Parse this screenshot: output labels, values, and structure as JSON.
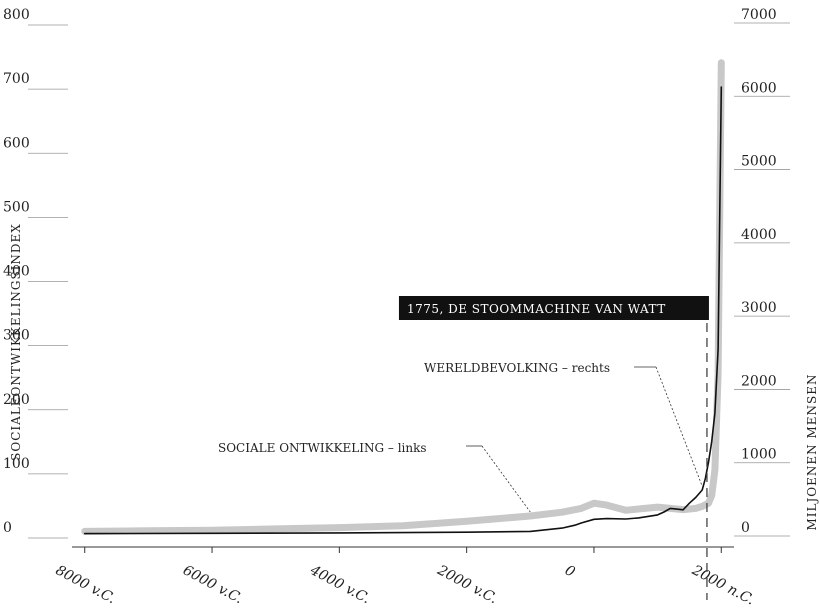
{
  "chart_data": {
    "type": "line",
    "ylabel_left": "SOCIALEONTWIKKELINGSINDEX",
    "ylabel_right": "MILJOENEN MENSEN",
    "ylim_left": [
      0,
      800
    ],
    "ylim_right": [
      0,
      7000
    ],
    "xlim": [
      -8200,
      2200
    ],
    "left_ticks": [
      "800",
      "700",
      "600",
      "500",
      "400",
      "300",
      "200",
      "100",
      "0"
    ],
    "right_ticks": [
      "7000",
      "6000",
      "5000",
      "4000",
      "3000",
      "2000",
      "1000",
      "0"
    ],
    "x_ticks": [
      {
        "label": "8000 v.C.",
        "value": -8000
      },
      {
        "label": "6000 v.C.",
        "value": -6000
      },
      {
        "label": "4000 v.C.",
        "value": -4000
      },
      {
        "label": "2000 v.C.",
        "value": -2000
      },
      {
        "label": "0",
        "value": 0
      },
      {
        "label": "2000 n.C.",
        "value": 2000
      }
    ],
    "series": [
      {
        "name": "SOCIALE ONTWIKKELING – links",
        "axis": "left",
        "color": "#c8c8c8",
        "x": [
          -8000,
          -7000,
          -6000,
          -5000,
          -4000,
          -3000,
          -2000,
          -1500,
          -1000,
          -500,
          -200,
          0,
          200,
          500,
          800,
          1000,
          1200,
          1400,
          1600,
          1700,
          1800,
          1850,
          1900,
          1950,
          2000
        ],
        "y": [
          4,
          5,
          6,
          8,
          10,
          13,
          20,
          24,
          28,
          34,
          40,
          48,
          45,
          37,
          40,
          42,
          40,
          38,
          40,
          43,
          48,
          60,
          100,
          250,
          735
        ]
      },
      {
        "name": "WERELDBEVOLKING – rechts",
        "axis": "right",
        "color": "#111111",
        "x": [
          -8000,
          -6000,
          -4000,
          -2000,
          -1000,
          -500,
          -300,
          -200,
          0,
          200,
          500,
          700,
          1000,
          1100,
          1200,
          1300,
          1400,
          1500,
          1600,
          1700,
          1750,
          1800,
          1850,
          1900,
          1950,
          2000
        ],
        "y": [
          5,
          10,
          15,
          25,
          35,
          80,
          120,
          150,
          200,
          210,
          205,
          220,
          260,
          300,
          350,
          340,
          330,
          420,
          500,
          600,
          760,
          980,
          1260,
          1650,
          2520,
          6100
        ]
      }
    ],
    "annotations": [
      {
        "text": "1775, DE STOOMMACHINE VAN WATT",
        "x": 1775
      },
      {
        "text": "WERELDBEVOLKING – rechts",
        "series": "WERELDBEVOLKING – rechts",
        "x_at": 1700
      },
      {
        "text": "SOCIALE ONTWIKKELING – links",
        "series": "SOCIALE ONTWIKKELING – links",
        "x_at": -1000
      }
    ],
    "grid": false
  }
}
